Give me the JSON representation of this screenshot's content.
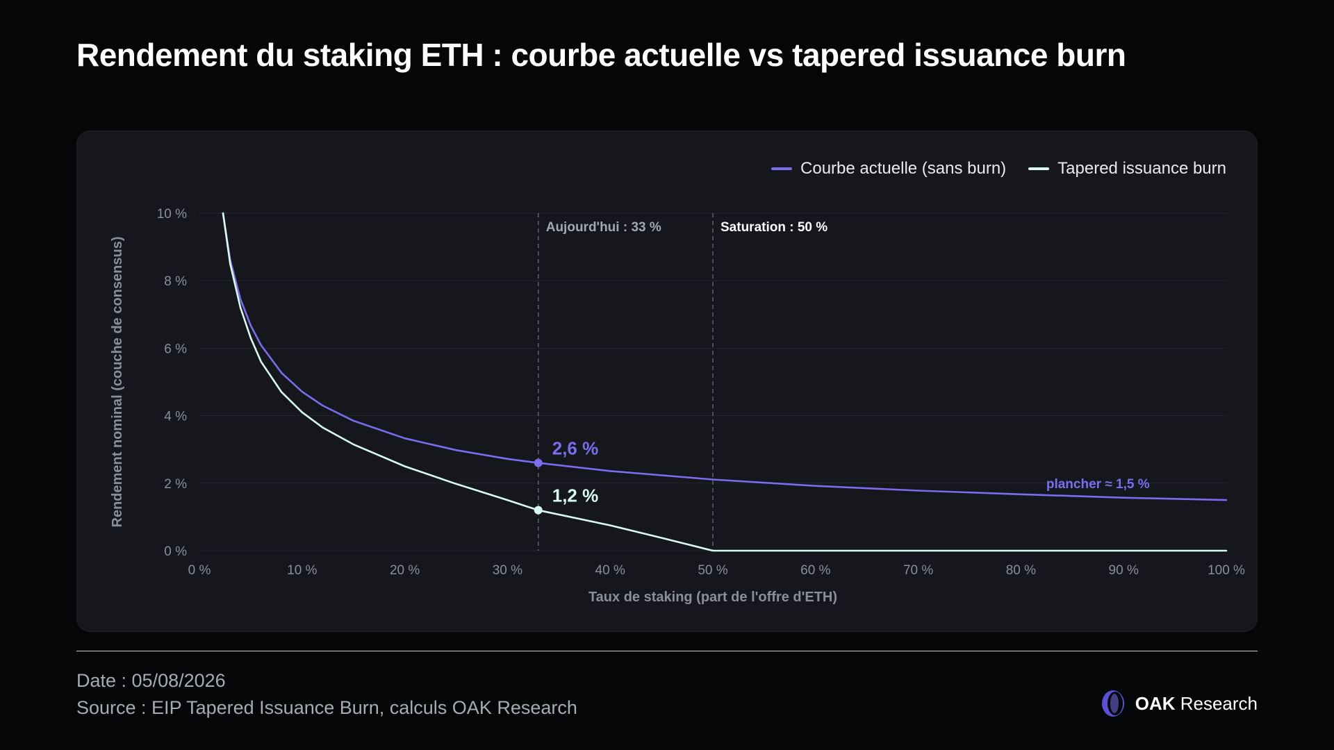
{
  "title": "Rendement du staking ETH : courbe actuelle vs tapered issuance burn",
  "footer": {
    "date": "Date : 05/08/2026",
    "source": "Source : EIP Tapered Issuance Burn, calculs OAK Research"
  },
  "brand": {
    "bold": "OAK",
    "rest": " Research",
    "logo_icon": "oak-ring-logo"
  },
  "colors": {
    "background": "#050608",
    "card": "#15171c",
    "current": "#7b6cf0",
    "tapered": "#d8fbf1",
    "grid": "#24272e",
    "muted": "#8a8f98"
  },
  "chart_data": {
    "type": "line",
    "xlabel": "Taux de staking (part de l'offre d'ETH)",
    "ylabel": "Rendement nominal (couche de consensus)",
    "xlim": [
      0,
      100
    ],
    "ylim": [
      0,
      10
    ],
    "x_ticks": [
      0,
      10,
      20,
      30,
      40,
      50,
      60,
      70,
      80,
      90,
      100
    ],
    "y_ticks": [
      0,
      2,
      4,
      6,
      8,
      10
    ],
    "x_tick_labels": [
      "0 %",
      "10 %",
      "20 %",
      "30 %",
      "40 %",
      "50 %",
      "60 %",
      "70 %",
      "80 %",
      "90 %",
      "100 %"
    ],
    "y_tick_labels": [
      "0 %",
      "2 %",
      "4 %",
      "6 %",
      "8 %",
      "10 %"
    ],
    "grid": "horizontal",
    "legend_position": "top-right",
    "series": [
      {
        "name": "Courbe actuelle (sans burn)",
        "color": "#7b6cf0",
        "x": [
          2.3,
          3,
          4,
          5,
          6,
          8,
          10,
          12,
          15,
          20,
          25,
          30,
          33,
          40,
          50,
          60,
          70,
          80,
          90,
          100
        ],
        "y": [
          10.0,
          8.62,
          7.45,
          6.67,
          6.09,
          5.27,
          4.71,
          4.3,
          3.85,
          3.33,
          2.98,
          2.72,
          2.6,
          2.36,
          2.11,
          1.92,
          1.78,
          1.67,
          1.57,
          1.5
        ]
      },
      {
        "name": "Tapered issuance burn",
        "color": "#d8fbf1",
        "x": [
          2.3,
          3,
          4,
          5,
          6,
          8,
          10,
          12,
          15,
          20,
          25,
          30,
          33,
          40,
          45,
          50,
          60,
          70,
          80,
          90,
          100
        ],
        "y": [
          10.0,
          8.5,
          7.2,
          6.3,
          5.6,
          4.7,
          4.1,
          3.65,
          3.15,
          2.5,
          1.98,
          1.5,
          1.2,
          0.75,
          0.38,
          0.0,
          0.0,
          0.0,
          0.0,
          0.0,
          0.0
        ]
      }
    ],
    "reference_lines": [
      {
        "x": 33,
        "label": "Aujourd'hui : 33 %"
      },
      {
        "x": 50,
        "label": "Saturation : 50 %"
      }
    ],
    "annotations": [
      {
        "x": 33,
        "y": 2.6,
        "label": "2,6 %",
        "series": 0
      },
      {
        "x": 33,
        "y": 1.2,
        "label": "1,2 %",
        "series": 1
      }
    ],
    "floor_annotation": {
      "label": "plancher ≈ 1,5 %",
      "x": 87.5,
      "y": 2.0
    }
  }
}
